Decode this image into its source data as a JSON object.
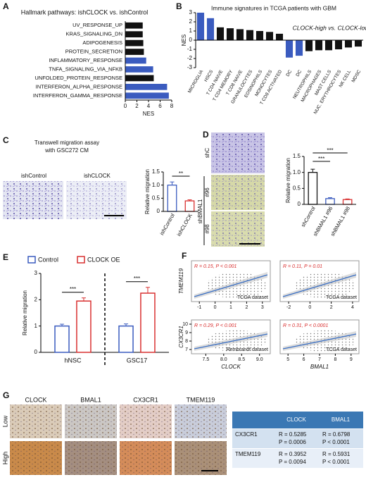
{
  "panel_labels": {
    "a": "A",
    "b": "B",
    "c": "C",
    "d": "D",
    "e": "E",
    "f": "F",
    "g": "G"
  },
  "chart_data": [
    {
      "type": "bar",
      "orientation": "horizontal",
      "title": "Hallmark pathways: ishCLOCK vs. ishControl",
      "categories": [
        "UV_RESPONSE_UP",
        "KRAS_SIGNALING_DN",
        "ADIPOGENESIS",
        "PROTEIN_SECRETION",
        "INFLAMMATORY_RESPONSE",
        "TNFA_SIGNALING_VIA_NFKB",
        "UNFOLDED_PROTEIN_RESPONSE",
        "INTERFERON_ALPHA_RESPONSE",
        "INTERFERON_GAMMA_RESPONSE"
      ],
      "values": [
        3.0,
        3.0,
        3.1,
        3.2,
        3.6,
        4.8,
        4.9,
        7.2,
        7.5
      ],
      "colors": [
        "#111111",
        "#111111",
        "#111111",
        "#111111",
        "#3a5bbf",
        "#3a5bbf",
        "#111111",
        "#3a5bbf",
        "#3a5bbf"
      ],
      "xlim": [
        0,
        8
      ],
      "xticks": [
        0,
        2,
        4,
        6,
        8
      ],
      "xlabel": "NES"
    },
    {
      "type": "bar",
      "title": "Immune signatures in TCGA patients with GBM",
      "annotation": "CLOCK-high vs. CLOCK-low",
      "ylabel": "NES",
      "categories": [
        "MICROGLIA",
        "HSCS",
        "T CD4 NAIVE",
        "T CD4 MEMORY",
        "T CD8 NAIVE",
        "GRANULOCYTES",
        "EOSINOPHILS",
        "MONOCYTES",
        "T CD8 ACTIVATED",
        "DC",
        "DC",
        "NEUTROPHILS",
        "MACROPHAGES",
        "MAST CELLS",
        "NUC. ERYTHROCYTES",
        "NK CELL",
        "MDSC"
      ],
      "values": [
        3.0,
        2.4,
        1.4,
        1.3,
        1.2,
        1.1,
        1.0,
        0.9,
        0.7,
        -1.9,
        -1.7,
        -1.2,
        -1.1,
        -1.1,
        -1.0,
        -0.8,
        -0.7
      ],
      "colors": [
        "#3a5bbf",
        "#3a5bbf",
        "#111111",
        "#111111",
        "#111111",
        "#111111",
        "#111111",
        "#111111",
        "#111111",
        "#3a5bbf",
        "#3a5bbf",
        "#111111",
        "#111111",
        "#111111",
        "#111111",
        "#111111",
        "#111111"
      ],
      "ylim": [
        -3,
        3
      ],
      "yticks": [
        -3,
        -2,
        -1,
        0,
        1,
        2,
        3
      ]
    },
    {
      "type": "bar",
      "ylabel": "Relative migration",
      "categories": [
        "ishControl",
        "ishCLOCK"
      ],
      "values": [
        1.0,
        0.4
      ],
      "errors": [
        0.12,
        0.04
      ],
      "colors": [
        "#3a5bbf",
        "#d93030"
      ],
      "fill": "#ffffff",
      "ylim": [
        0,
        1.5
      ],
      "yticks": [
        0,
        0.5,
        {
          "value": 1,
          "label": "1.0"
        },
        1.5
      ],
      "annotations": [
        "**"
      ]
    },
    {
      "type": "bar",
      "ylabel": "Relative migration",
      "categories": [
        "shControl",
        "shBMAL1 #96",
        "shBMAL1 #98"
      ],
      "values": [
        1.0,
        0.18,
        0.15
      ],
      "errors": [
        0.1,
        0.03,
        0.02
      ],
      "colors": [
        "#111111",
        "#3a5bbf",
        "#d93030"
      ],
      "fill": "#ffffff",
      "ylim": [
        0,
        1.5
      ],
      "yticks": [
        0,
        0.5,
        {
          "value": 1,
          "label": "1.0"
        },
        1.5
      ],
      "annotations": [
        "***",
        "***"
      ]
    },
    {
      "type": "grouped_bar",
      "ylabel": "Relative migration",
      "categories": [
        "hNSC",
        "GSC17"
      ],
      "series": [
        {
          "name": "Control",
          "color": "#3a5bbf",
          "values": [
            1.0,
            1.0
          ],
          "errors": [
            0.07,
            0.08
          ]
        },
        {
          "name": "CLOCK OE",
          "color": "#d93030",
          "values": [
            1.95,
            2.25
          ],
          "errors": [
            0.12,
            0.22
          ]
        }
      ],
      "fill": "#ffffff",
      "ylim": [
        0,
        3
      ],
      "yticks": [
        0,
        1,
        2,
        3
      ],
      "annotations": [
        "***",
        "***"
      ]
    }
  ],
  "panel_c": {
    "title": "Transwell migration assay",
    "subtitle": "with GSC272 CM",
    "images": [
      "ishControl",
      "ishCLOCK"
    ]
  },
  "panel_d": {
    "images": [
      "shC",
      "#96",
      "#98"
    ],
    "group": "shBMAL1"
  },
  "panel_f": [
    {
      "ylabel": "TMEM119",
      "stat": "R = 0.15, P < 0.001",
      "dataset": "TCGA dataset",
      "xlim": [
        -1.5,
        3.5
      ],
      "xticks": [
        -1,
        0,
        1,
        2,
        3
      ]
    },
    {
      "stat": "R = 0.11, P = 0.01",
      "dataset": "TCGA dataset",
      "xlim": [
        -2.8,
        4.6
      ],
      "xticks": [
        -2,
        0,
        2,
        4
      ]
    },
    {
      "ylabel": "CX3CR1",
      "xlabel": "CLOCK",
      "stat": "R = 0.29, P < 0.001",
      "dataset": "Rembrandt dataset",
      "xlim": [
        7.1,
        9.3
      ],
      "xticks": [
        7.5,
        {
          "value": 8,
          "label": "8.0"
        },
        8.5,
        {
          "value": 9,
          "label": "9.0"
        }
      ],
      "ylim": [
        6.5,
        10.5
      ],
      "yticks": [
        7,
        8,
        9,
        10
      ]
    },
    {
      "xlabel": "BMAL1",
      "stat": "R = 0.31, P < 0.0001",
      "dataset": "TCGA dataset",
      "xlim": [
        4.5,
        9.5
      ],
      "xticks": [
        5,
        6,
        7,
        8,
        9
      ]
    }
  ],
  "panel_g": {
    "columns": [
      "CLOCK",
      "BMAL1",
      "CX3CR1",
      "TMEM119"
    ],
    "rows": [
      "Low",
      "High"
    ],
    "table": {
      "header": [
        "CLOCK",
        "BMAL1"
      ],
      "rows": [
        {
          "label": "CX3CR1",
          "cells": [
            [
              "R = 0.5285",
              "P = 0.0006"
            ],
            [
              "R = 0.6798",
              "P < 0.0001"
            ]
          ]
        },
        {
          "label": "TMEM119",
          "cells": [
            [
              "R = 0.3952",
              "P = 0.0094"
            ],
            [
              "R = 0.5931",
              "P < 0.0001"
            ]
          ]
        }
      ]
    }
  }
}
